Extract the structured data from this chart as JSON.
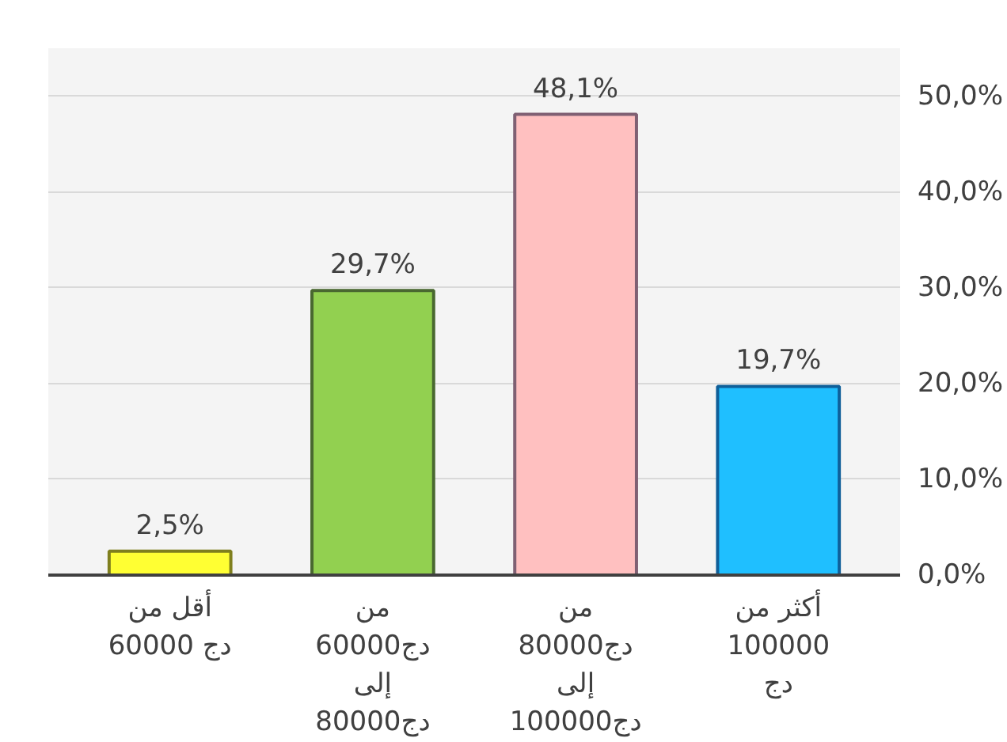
{
  "chart_data": {
    "type": "bar",
    "categories": [
      "أقل من\n60000 دج",
      "من\n60000دج\nإلى\n80000دج",
      "من\n80000دج\nإلى\n100000دج",
      "أكثر من\n100000\nدج"
    ],
    "values": [
      2.5,
      29.7,
      48.1,
      19.7
    ],
    "colors": [
      "#ffff33",
      "#92d050",
      "#ffc0c0",
      "#1fbfff"
    ],
    "value_labels": [
      "2,5%",
      "29,7%",
      "48,1%",
      "19,7%"
    ],
    "ylim": [
      0,
      55
    ],
    "yticks": [
      {
        "value": 0,
        "label": "0,0%"
      },
      {
        "value": 10,
        "label": "10,0%"
      },
      {
        "value": 20,
        "label": "20,0%"
      },
      {
        "value": 30,
        "label": "30,0%"
      },
      {
        "value": 40,
        "label": "40,0%"
      },
      {
        "value": 50,
        "label": "50,0%"
      }
    ],
    "grid": "y"
  }
}
